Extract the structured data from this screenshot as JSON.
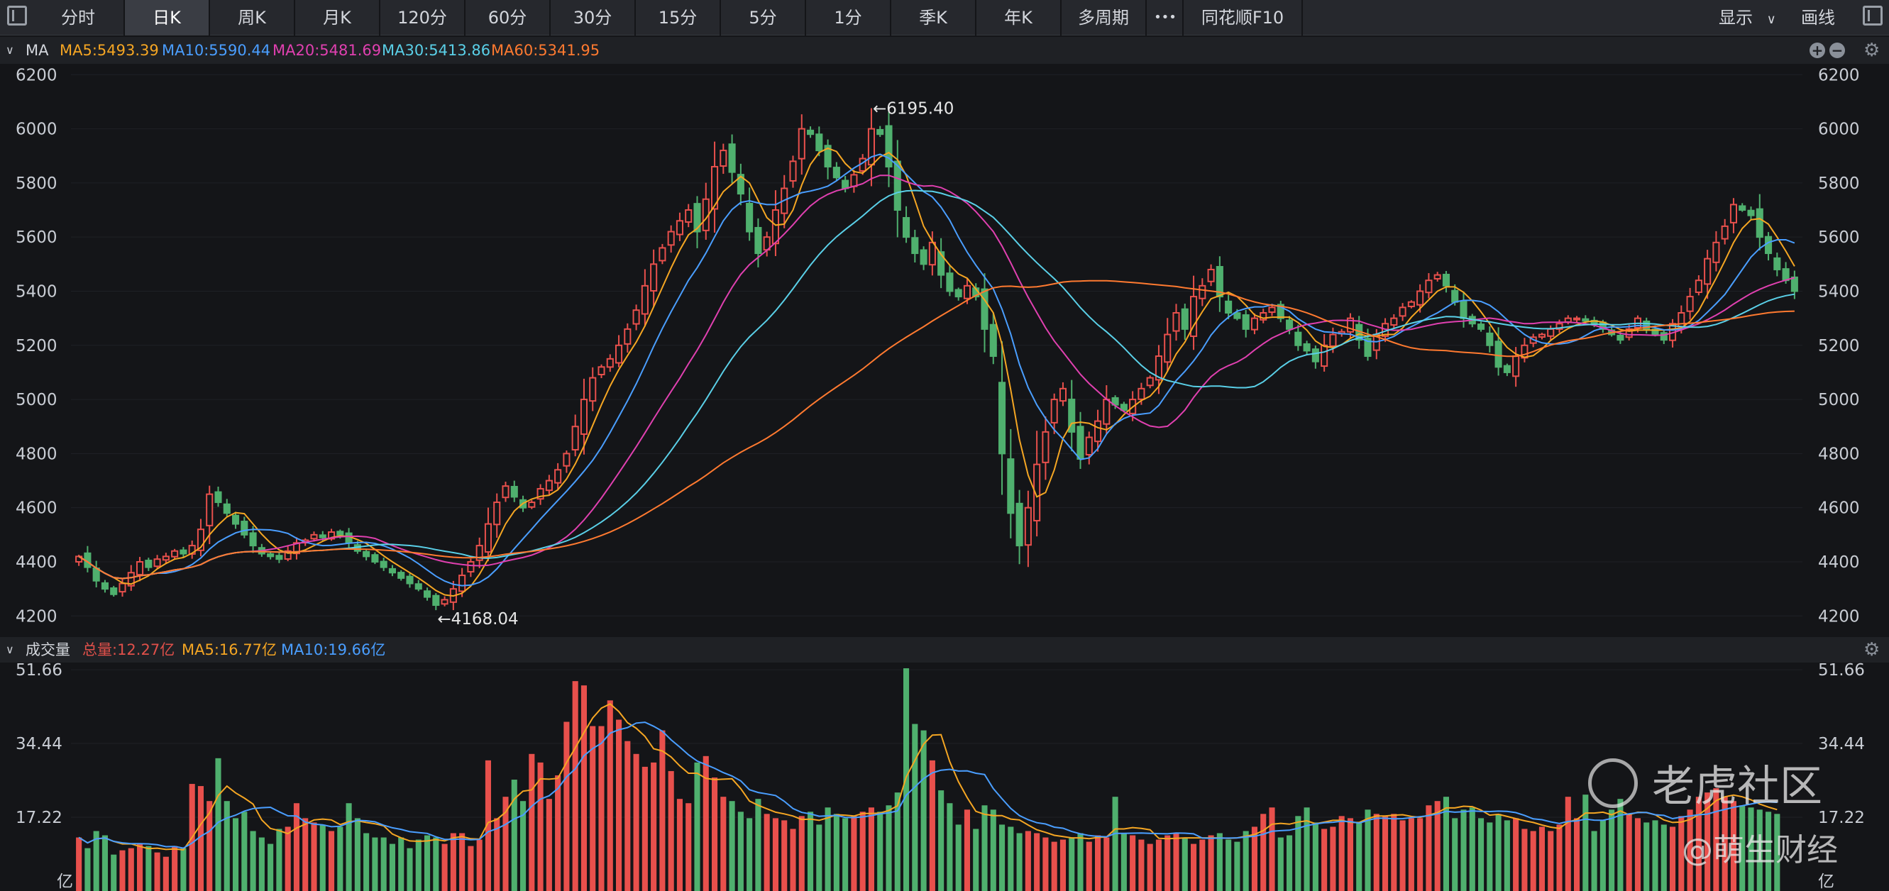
{
  "toolbar": {
    "tabs": [
      "分时",
      "日K",
      "周K",
      "月K",
      "120分",
      "60分",
      "30分",
      "15分",
      "5分",
      "1分",
      "季K",
      "年K",
      "多周期"
    ],
    "active_tab": "日K",
    "more_label": "•••",
    "f10_label": "同花顺F10",
    "display_label": "显示",
    "draw_label": "画线"
  },
  "ma_legend": {
    "title": "MA",
    "items": [
      {
        "label": "MA5:5493.39",
        "color": "#f5a623"
      },
      {
        "label": "MA10:5590.44",
        "color": "#4a9eff"
      },
      {
        "label": "MA20:5481.69",
        "color": "#e040b0"
      },
      {
        "label": "MA30:5413.86",
        "color": "#5ad0e8"
      },
      {
        "label": "MA60:5341.95",
        "color": "#ff7a30"
      }
    ]
  },
  "volume_legend": {
    "title": "成交量",
    "items": [
      {
        "label": "总量:12.27亿",
        "color": "#e0504a"
      },
      {
        "label": "MA5:16.77亿",
        "color": "#f5a623"
      },
      {
        "label": "MA10:19.66亿",
        "color": "#4a9eff"
      }
    ]
  },
  "watermark": {
    "brand": "老虎社区",
    "author": "@萌生财经"
  },
  "chart_data": {
    "type": "candlestick",
    "price_axis": {
      "ticks": [
        4200,
        4400,
        4600,
        4800,
        5000,
        5200,
        5400,
        5600,
        5800,
        6000,
        6200
      ],
      "range": [
        4130,
        6240
      ]
    },
    "volume_axis": {
      "ticks": [
        "51.66",
        "34.44",
        "17.22"
      ],
      "unit": "亿",
      "range": [
        0,
        53
      ]
    },
    "annotations": {
      "high": "←6195.40",
      "low": "←4168.04"
    },
    "closes": [
      4420,
      4380,
      4330,
      4300,
      4280,
      4320,
      4360,
      4400,
      4380,
      4410,
      4420,
      4440,
      4430,
      4460,
      4520,
      4650,
      4620,
      4580,
      4540,
      4500,
      4460,
      4430,
      4420,
      4410,
      4440,
      4470,
      4480,
      4500,
      4490,
      4510,
      4500,
      4470,
      4440,
      4420,
      4400,
      4380,
      4360,
      4340,
      4320,
      4300,
      4270,
      4240,
      4260,
      4300,
      4350,
      4400,
      4460,
      4540,
      4620,
      4680,
      4640,
      4600,
      4620,
      4670,
      4700,
      4740,
      4800,
      4900,
      5000,
      5080,
      5120,
      5150,
      5200,
      5260,
      5330,
      5420,
      5500,
      5560,
      5620,
      5660,
      5700,
      5620,
      5740,
      5860,
      5920,
      5840,
      5760,
      5620,
      5540,
      5600,
      5700,
      5780,
      5880,
      6000,
      5980,
      5920,
      5860,
      5820,
      5780,
      5830,
      5890,
      6000,
      5980,
      5860,
      5700,
      5600,
      5540,
      5500,
      5580,
      5460,
      5400,
      5380,
      5420,
      5380,
      5260,
      5160,
      4800,
      4580,
      4460,
      4600,
      4760,
      4880,
      5000,
      5040,
      4880,
      4780,
      4860,
      4920,
      5000,
      4980,
      4960,
      5000,
      5040,
      5080,
      5160,
      5240,
      5320,
      5260,
      5380,
      5420,
      5480,
      5380,
      5320,
      5300,
      5260,
      5300,
      5320,
      5340,
      5300,
      5260,
      5200,
      5180,
      5140,
      5200,
      5240,
      5250,
      5300,
      5220,
      5160,
      5240,
      5280,
      5300,
      5340,
      5360,
      5400,
      5440,
      5460,
      5420,
      5360,
      5300,
      5280,
      5260,
      5200,
      5120,
      5100,
      5160,
      5200,
      5230,
      5240,
      5260,
      5280,
      5300,
      5300,
      5290,
      5280,
      5260,
      5240,
      5220,
      5260,
      5300,
      5260,
      5240,
      5220,
      5280,
      5320,
      5380,
      5440,
      5520,
      5580,
      5640,
      5720,
      5700,
      5680,
      5600,
      5540,
      5480,
      5440,
      5400
    ],
    "volumes": [
      12.5,
      10.0,
      14.0,
      13.0,
      8.5,
      9.5,
      10.0,
      11.0,
      10.5,
      9.0,
      8.0,
      10.5,
      10.0,
      25.0,
      24.5,
      21.0,
      31.0,
      21.0,
      17.0,
      18.5,
      14.0,
      12.5,
      11.0,
      14.5,
      15.0,
      20.5,
      17.0,
      16.0,
      15.5,
      14.0,
      15.0,
      20.5,
      17.0,
      13.5,
      12.5,
      12.5,
      11.0,
      12.5,
      10.0,
      12.0,
      13.0,
      12.5,
      11.0,
      13.5,
      13.5,
      10.5,
      12.0,
      30.5,
      17.0,
      22.0,
      26.0,
      21.0,
      32.0,
      30.0,
      21.5,
      27.0,
      39.5,
      49.0,
      48.0,
      38.5,
      38.5,
      44.5,
      40.0,
      35.0,
      32.0,
      29.0,
      30.0,
      37.5,
      28.0,
      21.5,
      20.5,
      30.0,
      31.5,
      26.5,
      22.0,
      21.0,
      18.5,
      17.0,
      21.5,
      18.0,
      17.0,
      16.5,
      14.5,
      17.5,
      18.5,
      15.5,
      19.5,
      18.0,
      17.0,
      17.5,
      18.5,
      19.5,
      18.5,
      20.0,
      23.0,
      52.0,
      39.0,
      37.5,
      30.5,
      23.5,
      20.5,
      15.5,
      19.0,
      14.5,
      20.0,
      19.0,
      15.5,
      15.0,
      13.5,
      14.0,
      13.5,
      12.5,
      11.5,
      12.0,
      12.5,
      13.5,
      11.5,
      13.0,
      12.5,
      22.0,
      13.5,
      13.0,
      12.0,
      11.0,
      12.0,
      13.0,
      13.5,
      12.5,
      11.0,
      12.0,
      13.0,
      13.5,
      12.0,
      11.5,
      14.0,
      15.0,
      18.0,
      19.5,
      12.5,
      13.0,
      17.5,
      19.5,
      16.0,
      14.5,
      15.0,
      17.5,
      17.0,
      16.0,
      19.0,
      18.0,
      17.5,
      18.0,
      16.5,
      17.0,
      17.0,
      20.0,
      21.0,
      22.0,
      17.0,
      19.0,
      19.5,
      17.0,
      16.0,
      18.0,
      16.5,
      17.0,
      14.5,
      14.0,
      15.0,
      14.0,
      15.5,
      22.0,
      17.0,
      22.5,
      14.0,
      16.5,
      19.0,
      21.5,
      18.0,
      17.0,
      16.0,
      16.5,
      15.5,
      15.0,
      17.5,
      19.0,
      22.0,
      23.0,
      24.0,
      22.0,
      21.0,
      20.0,
      19.5,
      19.0,
      18.5,
      18.0
    ]
  }
}
